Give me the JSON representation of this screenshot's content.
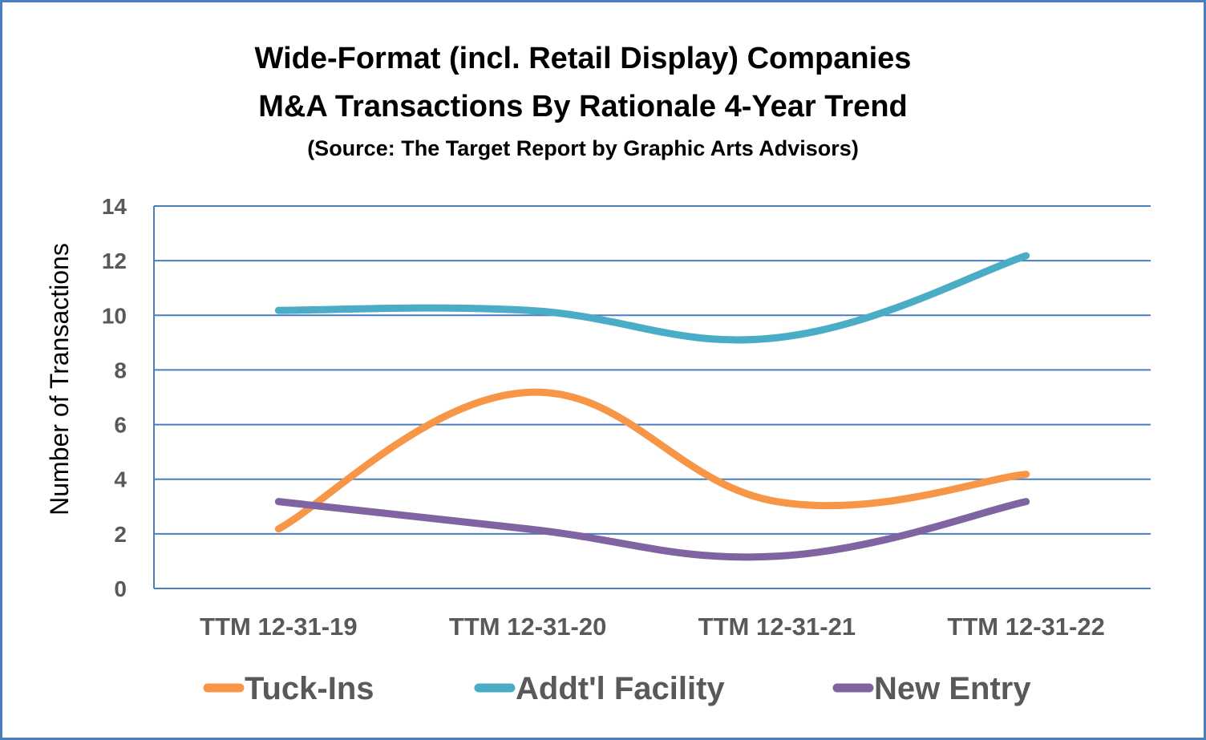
{
  "chart_data": {
    "type": "line",
    "title": "Wide-Format (incl. Retail Display) Companies",
    "title_line2": "M&A Transactions By Rationale 4-Year Trend",
    "subtitle": "(Source: The Target Report by Graphic Arts Advisors)",
    "ylabel": "Number of Transactions",
    "xlabel": "",
    "ylim": [
      0,
      14
    ],
    "yticks": [
      "0",
      "2",
      "4",
      "6",
      "8",
      "10",
      "12",
      "14"
    ],
    "categories": [
      "TTM 12-31-19",
      "TTM 12-31-20",
      "TTM 12-31-21",
      "TTM 12-31-22"
    ],
    "grid": true,
    "smooth": true,
    "legend_position": "bottom",
    "series": [
      {
        "name": "Tuck-Ins",
        "color": "#f79646",
        "values": [
          2,
          7,
          3,
          4
        ]
      },
      {
        "name": "Addt'l Facility",
        "color": "#4bacc6",
        "values": [
          10,
          10,
          9,
          12
        ]
      },
      {
        "name": "New Entry",
        "color": "#8064a2",
        "values": [
          3,
          2,
          1,
          3
        ]
      }
    ]
  }
}
